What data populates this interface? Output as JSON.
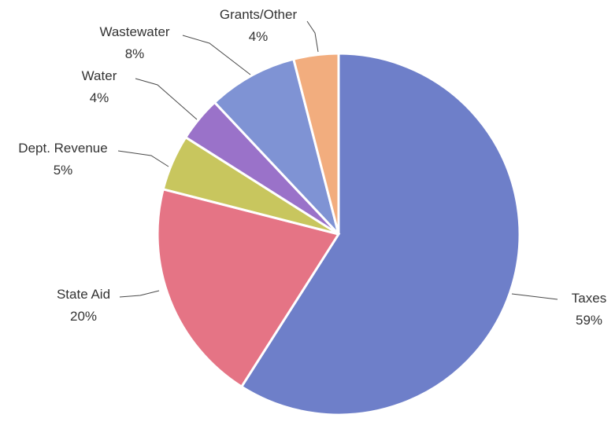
{
  "chart_data": {
    "type": "pie",
    "title": "",
    "slices": [
      {
        "label": "Taxes",
        "value": 59,
        "pct_label": "59%",
        "color": "#6e7fc9"
      },
      {
        "label": "State Aid",
        "value": 20,
        "pct_label": "20%",
        "color": "#e57485"
      },
      {
        "label": "Dept. Revenue",
        "value": 5,
        "pct_label": "5%",
        "color": "#c8c65e"
      },
      {
        "label": "Water",
        "value": 4,
        "pct_label": "4%",
        "color": "#9a72c9"
      },
      {
        "label": "Wastewater",
        "value": 8,
        "pct_label": "8%",
        "color": "#7f93d4"
      },
      {
        "label": "Grants/Other",
        "value": 4,
        "pct_label": "4%",
        "color": "#f2ad7e"
      }
    ],
    "start_angle_deg": 0,
    "direction": "clockwise",
    "legend": "none",
    "data_labels": "outside with leader lines"
  }
}
